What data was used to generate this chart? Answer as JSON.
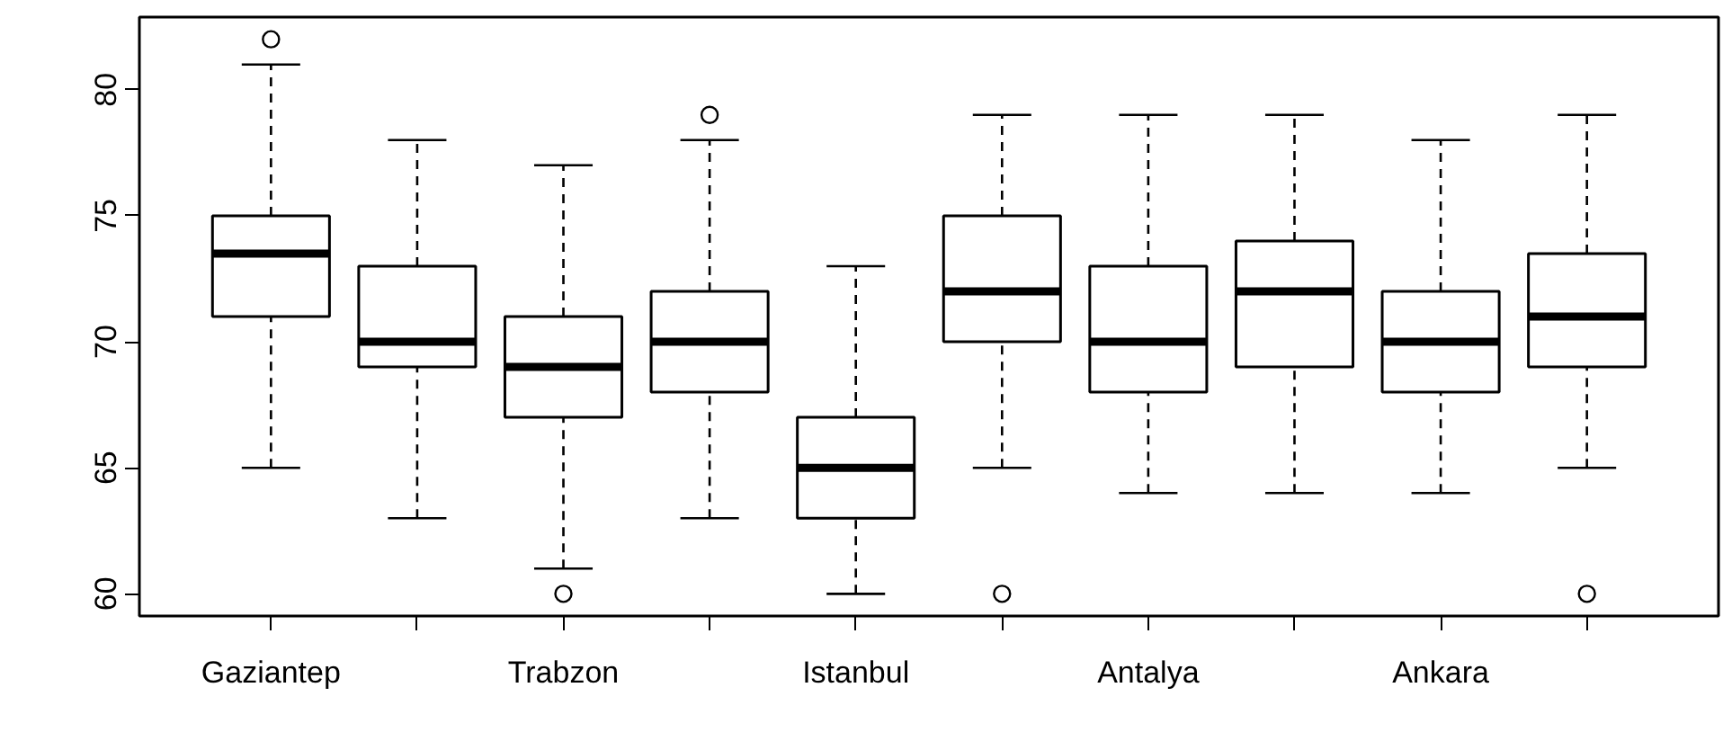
{
  "chart_data": {
    "type": "box",
    "categories": [
      "Gaziantep",
      null,
      "Trabzon",
      null,
      "Istanbul",
      null,
      "Antalya",
      null,
      "Ankara",
      null
    ],
    "boxes": [
      {
        "low": 65,
        "q1": 71,
        "median": 73.5,
        "q3": 75,
        "high": 81,
        "outliers": [
          82
        ]
      },
      {
        "low": 63,
        "q1": 69,
        "median": 70,
        "q3": 73,
        "high": 78
      },
      {
        "low": 61,
        "q1": 67,
        "median": 69,
        "q3": 71,
        "high": 77,
        "outliers": [
          60
        ]
      },
      {
        "low": 63,
        "q1": 68,
        "median": 70,
        "q3": 72,
        "high": 78,
        "outliers": [
          79
        ]
      },
      {
        "low": 60,
        "q1": 63,
        "median": 65,
        "q3": 67,
        "high": 73
      },
      {
        "low": 65,
        "q1": 70,
        "median": 72,
        "q3": 75,
        "high": 79,
        "outliers": [
          60
        ]
      },
      {
        "low": 64,
        "q1": 68,
        "median": 70,
        "q3": 73,
        "high": 79
      },
      {
        "low": 64,
        "q1": 69,
        "median": 72,
        "q3": 74,
        "high": 79
      },
      {
        "low": 64,
        "q1": 68,
        "median": 70,
        "q3": 72,
        "high": 78
      },
      {
        "low": 65,
        "q1": 69,
        "median": 71,
        "q3": 73.5,
        "high": 79,
        "outliers": [
          60
        ]
      }
    ],
    "ylim": [
      59.12,
      82.88
    ],
    "yticks": [
      60,
      65,
      70,
      75,
      80
    ]
  }
}
